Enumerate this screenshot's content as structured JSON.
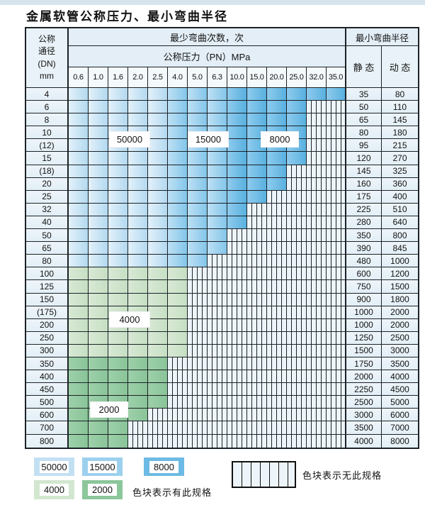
{
  "title": "金属软管公称压力、最小弯曲半径",
  "colors": {
    "cycles_50000": "#c3e0f3",
    "cycles_15000": "#9cd0ee",
    "cycles_8000": "#6cbbe5",
    "cycles_4000": "#d3e7d0",
    "cycles_2000": "#8cc69b",
    "no_spec_hatch_bg": "#eef5fa",
    "grid_line": "#1b2228",
    "header_bg": "#e3eef6"
  },
  "table": {
    "header": {
      "dn_lines": [
        "公称",
        "通径",
        "(DN)",
        "mm"
      ],
      "bend_cycles": "最少弯曲次数，次",
      "pressure": "公称压力（PN）MPa",
      "radius": "最小弯曲半径",
      "static": "静 态",
      "dynamic": "动 态",
      "pressures": [
        "0.6",
        "1.0",
        "1.6",
        "2.0",
        "2.5",
        "4.0",
        "5.0",
        "6.3",
        "10.0",
        "15.0",
        "20.0",
        "25.0",
        "32.0",
        "35.0"
      ]
    },
    "cell_legend": {
      "b50": "50000 cycles",
      "b15": "15000 cycles",
      "b8": "8000 cycles",
      "g4": "4000 cycles",
      "g2": "2000 cycles",
      "x": "no specification"
    },
    "rows": [
      {
        "dn": "4",
        "cells": [
          "b50",
          "b50",
          "b50",
          "b50",
          "b50",
          "b15",
          "b15",
          "b15",
          "b8",
          "b8",
          "b8",
          "b8",
          "b8",
          "b8"
        ],
        "static": "35",
        "dynamic": "80"
      },
      {
        "dn": "6",
        "cells": [
          "b50",
          "b50",
          "b50",
          "b50",
          "b50",
          "b15",
          "b15",
          "b15",
          "b8",
          "b8",
          "b8",
          "b8",
          "x",
          "x"
        ],
        "static": "50",
        "dynamic": "110"
      },
      {
        "dn": "8",
        "cells": [
          "b50",
          "b50",
          "b50",
          "b50",
          "b50",
          "b15",
          "b15",
          "b15",
          "b8",
          "b8",
          "b8",
          "b8",
          "x",
          "x"
        ],
        "static": "65",
        "dynamic": "145"
      },
      {
        "dn": "10",
        "cells": [
          "b50",
          "b50",
          "b50",
          "b50",
          "b50",
          "b15",
          "b15",
          "b15",
          "b8",
          "b8",
          "b8",
          "b8",
          "x",
          "x"
        ],
        "static": "80",
        "dynamic": "180"
      },
      {
        "dn": "(12)",
        "cells": [
          "b50",
          "b50",
          "b50",
          "b50",
          "b50",
          "b15",
          "b15",
          "b15",
          "b8",
          "b8",
          "b8",
          "b8",
          "x",
          "x"
        ],
        "static": "95",
        "dynamic": "215"
      },
      {
        "dn": "15",
        "cells": [
          "b50",
          "b50",
          "b50",
          "b50",
          "b50",
          "b15",
          "b15",
          "b15",
          "b8",
          "b8",
          "b8",
          "b8",
          "x",
          "x"
        ],
        "static": "120",
        "dynamic": "270"
      },
      {
        "dn": "(18)",
        "cells": [
          "b50",
          "b50",
          "b50",
          "b50",
          "b50",
          "b15",
          "b15",
          "b15",
          "b8",
          "b8",
          "b8",
          "x",
          "x",
          "x"
        ],
        "static": "145",
        "dynamic": "325"
      },
      {
        "dn": "20",
        "cells": [
          "b50",
          "b50",
          "b50",
          "b50",
          "b50",
          "b15",
          "b15",
          "b15",
          "b8",
          "b8",
          "b8",
          "x",
          "x",
          "x"
        ],
        "static": "160",
        "dynamic": "360"
      },
      {
        "dn": "25",
        "cells": [
          "b50",
          "b50",
          "b50",
          "b50",
          "b50",
          "b15",
          "b15",
          "b15",
          "b8",
          "b8",
          "x",
          "x",
          "x",
          "x"
        ],
        "static": "175",
        "dynamic": "400"
      },
      {
        "dn": "32",
        "cells": [
          "b50",
          "b50",
          "b50",
          "b50",
          "b50",
          "b15",
          "b15",
          "b15",
          "b8",
          "x",
          "x",
          "x",
          "x",
          "x"
        ],
        "static": "225",
        "dynamic": "510"
      },
      {
        "dn": "40",
        "cells": [
          "b50",
          "b50",
          "b50",
          "b50",
          "b50",
          "b15",
          "b15",
          "b15",
          "b8",
          "x",
          "x",
          "x",
          "x",
          "x"
        ],
        "static": "280",
        "dynamic": "640"
      },
      {
        "dn": "50",
        "cells": [
          "b50",
          "b50",
          "b50",
          "b50",
          "b50",
          "b15",
          "b15",
          "b15",
          "x",
          "x",
          "x",
          "x",
          "x",
          "x"
        ],
        "static": "350",
        "dynamic": "800"
      },
      {
        "dn": "65",
        "cells": [
          "b50",
          "b50",
          "b50",
          "b50",
          "b50",
          "b15",
          "b15",
          "b15",
          "x",
          "x",
          "x",
          "x",
          "x",
          "x"
        ],
        "static": "390",
        "dynamic": "845"
      },
      {
        "dn": "80",
        "cells": [
          "b50",
          "b50",
          "b50",
          "b50",
          "b50",
          "b15",
          "b15",
          "x",
          "x",
          "x",
          "x",
          "x",
          "x",
          "x"
        ],
        "static": "480",
        "dynamic": "1000"
      },
      {
        "dn": "100",
        "cells": [
          "g4",
          "g4",
          "g4",
          "g4",
          "g4",
          "g4",
          "x",
          "x",
          "x",
          "x",
          "x",
          "x",
          "x",
          "x"
        ],
        "static": "600",
        "dynamic": "1200"
      },
      {
        "dn": "125",
        "cells": [
          "g4",
          "g4",
          "g4",
          "g4",
          "g4",
          "g4",
          "x",
          "x",
          "x",
          "x",
          "x",
          "x",
          "x",
          "x"
        ],
        "static": "750",
        "dynamic": "1500"
      },
      {
        "dn": "150",
        "cells": [
          "g4",
          "g4",
          "g4",
          "g4",
          "g4",
          "g4",
          "x",
          "x",
          "x",
          "x",
          "x",
          "x",
          "x",
          "x"
        ],
        "static": "900",
        "dynamic": "1800"
      },
      {
        "dn": "(175)",
        "cells": [
          "g4",
          "g4",
          "g4",
          "g4",
          "g4",
          "g4",
          "x",
          "x",
          "x",
          "x",
          "x",
          "x",
          "x",
          "x"
        ],
        "static": "1000",
        "dynamic": "2000"
      },
      {
        "dn": "200",
        "cells": [
          "g4",
          "g4",
          "g4",
          "g4",
          "g4",
          "g4",
          "x",
          "x",
          "x",
          "x",
          "x",
          "x",
          "x",
          "x"
        ],
        "static": "1000",
        "dynamic": "2000"
      },
      {
        "dn": "250",
        "cells": [
          "g4",
          "g4",
          "g4",
          "g4",
          "g4",
          "g4",
          "x",
          "x",
          "x",
          "x",
          "x",
          "x",
          "x",
          "x"
        ],
        "static": "1250",
        "dynamic": "2500"
      },
      {
        "dn": "300",
        "cells": [
          "g4",
          "g4",
          "g4",
          "g4",
          "g4",
          "g4",
          "x",
          "x",
          "x",
          "x",
          "x",
          "x",
          "x",
          "x"
        ],
        "static": "1500",
        "dynamic": "3000"
      },
      {
        "dn": "350",
        "cells": [
          "g2",
          "g2",
          "g2",
          "g2",
          "g2",
          "x",
          "x",
          "x",
          "x",
          "x",
          "x",
          "x",
          "x",
          "x"
        ],
        "static": "1750",
        "dynamic": "3500"
      },
      {
        "dn": "400",
        "cells": [
          "g2",
          "g2",
          "g2",
          "g2",
          "g2",
          "x",
          "x",
          "x",
          "x",
          "x",
          "x",
          "x",
          "x",
          "x"
        ],
        "static": "2000",
        "dynamic": "4000"
      },
      {
        "dn": "450",
        "cells": [
          "g2",
          "g2",
          "g2",
          "g2",
          "g2",
          "x",
          "x",
          "x",
          "x",
          "x",
          "x",
          "x",
          "x",
          "x"
        ],
        "static": "2250",
        "dynamic": "4500"
      },
      {
        "dn": "500",
        "cells": [
          "g2",
          "g2",
          "g2",
          "g2",
          "g2",
          "x",
          "x",
          "x",
          "x",
          "x",
          "x",
          "x",
          "x",
          "x"
        ],
        "static": "2500",
        "dynamic": "5000"
      },
      {
        "dn": "600",
        "cells": [
          "g2",
          "g2",
          "g2",
          "g2",
          "x",
          "x",
          "x",
          "x",
          "x",
          "x",
          "x",
          "x",
          "x",
          "x"
        ],
        "static": "3000",
        "dynamic": "6000"
      },
      {
        "dn": "700",
        "cells": [
          "g2",
          "g2",
          "g2",
          "x",
          "x",
          "x",
          "x",
          "x",
          "x",
          "x",
          "x",
          "x",
          "x",
          "x"
        ],
        "static": "3500",
        "dynamic": "7000"
      },
      {
        "dn": "800",
        "cells": [
          "g2",
          "g2",
          "g2",
          "x",
          "x",
          "x",
          "x",
          "x",
          "x",
          "x",
          "x",
          "x",
          "x",
          "x"
        ],
        "static": "4000",
        "dynamic": "8000"
      }
    ]
  },
  "overlays": [
    {
      "text": "50000"
    },
    {
      "text": "15000"
    },
    {
      "text": "8000"
    },
    {
      "text": "4000"
    },
    {
      "text": "2000"
    }
  ],
  "legend": {
    "items": [
      {
        "label": "50000"
      },
      {
        "label": "15000"
      },
      {
        "label": "8000"
      },
      {
        "label": "4000"
      },
      {
        "label": "2000"
      }
    ],
    "has_text": "色块表示有此规格",
    "none_text": "色块表示无此规格"
  }
}
